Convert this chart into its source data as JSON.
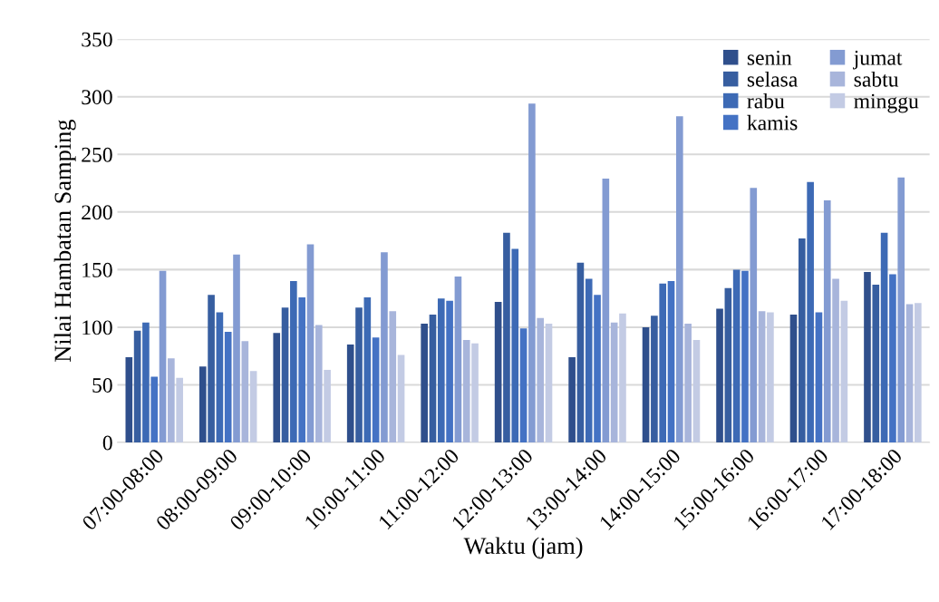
{
  "chart_data": {
    "type": "bar",
    "xlabel": "Waktu (jam)",
    "ylabel": "Nilai Hambatan Samping",
    "categories": [
      "07:00-08:00",
      "08:00-09:00",
      "09:00-10:00",
      "10:00-11:00",
      "11:00-12:00",
      "12:00-13:00",
      "13:00-14:00",
      "14:00-15:00",
      "15:00-16:00",
      "16:00-17:00",
      "17:00-18:00"
    ],
    "series": [
      {
        "name": "senin",
        "color": "#2f4f8c",
        "values": [
          74,
          66,
          95,
          85,
          103,
          122,
          74,
          100,
          116,
          111,
          148
        ]
      },
      {
        "name": "selasa",
        "color": "#375ea0",
        "values": [
          97,
          128,
          117,
          117,
          111,
          182,
          156,
          110,
          134,
          177,
          137
        ]
      },
      {
        "name": "rabu",
        "color": "#3d6ab5",
        "values": [
          104,
          113,
          140,
          126,
          125,
          168,
          142,
          138,
          150,
          226,
          182
        ]
      },
      {
        "name": "kamis",
        "color": "#4472c4",
        "values": [
          57,
          96,
          126,
          91,
          123,
          99,
          128,
          140,
          149,
          113,
          146
        ]
      },
      {
        "name": "jumat",
        "color": "#839bd2",
        "values": [
          149,
          163,
          172,
          165,
          144,
          294,
          229,
          283,
          221,
          210,
          230
        ]
      },
      {
        "name": "sabtu",
        "color": "#a8b5db",
        "values": [
          73,
          88,
          102,
          114,
          89,
          108,
          104,
          103,
          114,
          142,
          120
        ]
      },
      {
        "name": "minggu",
        "color": "#c3cbe4",
        "values": [
          56,
          62,
          63,
          76,
          86,
          103,
          112,
          89,
          113,
          123,
          121
        ]
      }
    ],
    "ylim": [
      0,
      350
    ],
    "yticks": [
      0,
      50,
      100,
      150,
      200,
      250,
      300,
      350
    ],
    "grid": "y",
    "legend": "top right"
  }
}
